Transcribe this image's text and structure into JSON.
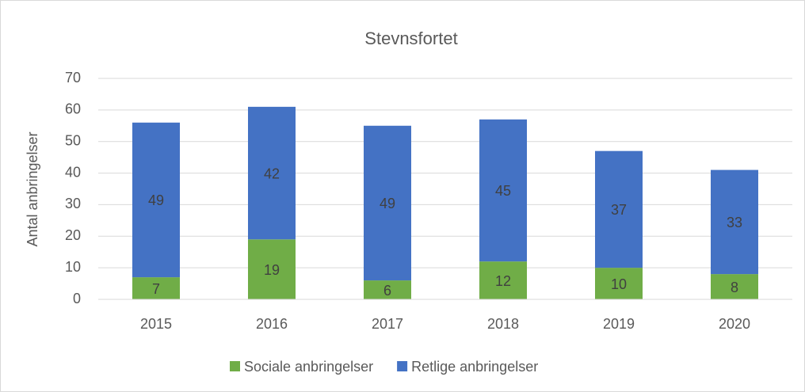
{
  "chart_data": {
    "type": "bar",
    "stacked": true,
    "title": "Stevnsfortet",
    "y_label": "Antal anbringelser",
    "categories": [
      "2015",
      "2016",
      "2017",
      "2018",
      "2019",
      "2020"
    ],
    "series": [
      {
        "name": "Sociale anbringelser",
        "color": "#70ad47",
        "values": [
          7,
          19,
          6,
          12,
          10,
          8
        ]
      },
      {
        "name": "Retlige anbringelser",
        "color": "#4472c4",
        "values": [
          49,
          42,
          49,
          45,
          37,
          33
        ]
      }
    ],
    "ylim": [
      0,
      70
    ],
    "yticks": [
      0,
      10,
      20,
      30,
      40,
      50,
      60,
      70
    ],
    "grid": true,
    "legend": "bottom"
  }
}
